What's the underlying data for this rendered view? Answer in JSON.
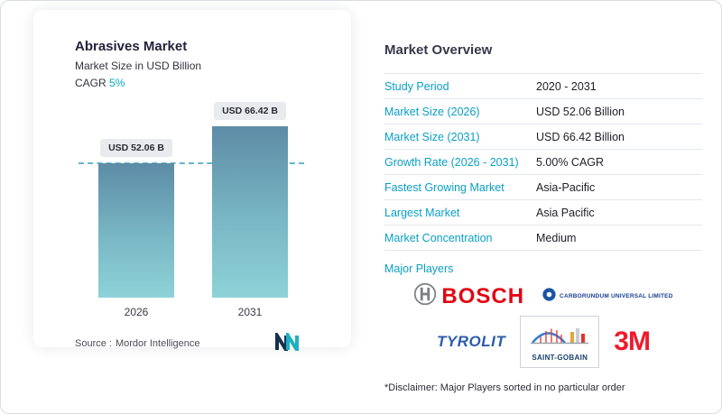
{
  "left_card": {
    "title": "Abrasives Market",
    "subtitle": "Market Size in USD Billion",
    "cagr_label": "CAGR",
    "cagr_value": "5%",
    "source_label": "Source :",
    "source_value": "Mordor Intelligence"
  },
  "chart_data": {
    "type": "bar",
    "title": "Abrasives Market",
    "ylabel": "Market Size in USD Billion",
    "categories": [
      "2026",
      "2031"
    ],
    "values": [
      52.06,
      66.42
    ],
    "value_labels": [
      "USD 52.06 B",
      "USD 66.42 B"
    ],
    "ylim": [
      0,
      66.42
    ],
    "reference_line": 52.06,
    "legend": "none",
    "grid": "off",
    "bar_gradient": [
      "#5d8ca6",
      "#8ed2d8"
    ]
  },
  "overview": {
    "title": "Market Overview",
    "rows": [
      {
        "label": "Study Period",
        "value": "2020 - 2031"
      },
      {
        "label": "Market Size (2026)",
        "value": "USD 52.06 Billion"
      },
      {
        "label": "Market Size (2031)",
        "value": "USD 66.42 Billion"
      },
      {
        "label": "Growth Rate (2026 - 2031)",
        "value": "5.00% CAGR"
      },
      {
        "label": "Fastest Growing Market",
        "value": "Asia-Pacific"
      },
      {
        "label": "Largest Market",
        "value": "Asia Pacific"
      },
      {
        "label": "Market Concentration",
        "value": "Medium"
      }
    ],
    "major_players_label": "Major Players",
    "players": {
      "bosch": "BOSCH",
      "cumi": "CARBORUNDUM UNIVERSAL LIMITED",
      "tyrolit": "TYROLIT",
      "saint_gobain": "SAINT-GOBAIN",
      "mmm": "3M"
    },
    "disclaimer": "*Disclaimer: Major Players sorted in no particular order"
  },
  "colors": {
    "accent_teal": "#0a9ec4",
    "dashed_line": "#66b7cc",
    "bar_top": "#5d8ca6",
    "bar_bottom": "#8ed2d8",
    "bosch_red": "#e30613",
    "tyrolit_blue": "#2a5caa",
    "saint_gobain_navy": "#17406e",
    "mmm_red": "#ef1b2d",
    "table_border": "#e4e7ec"
  }
}
